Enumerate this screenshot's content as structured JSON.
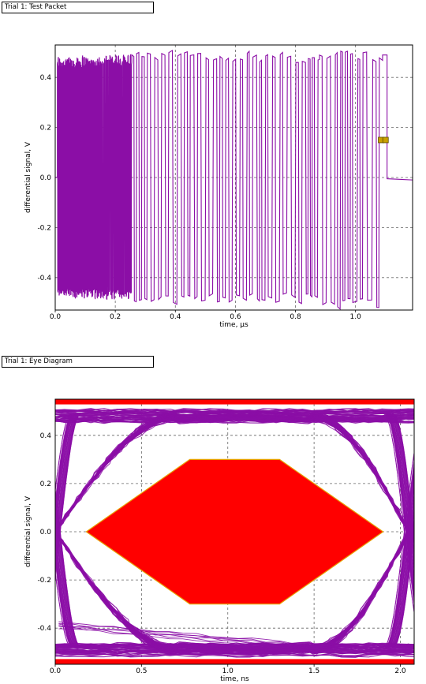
{
  "chart_data": [
    {
      "type": "line",
      "title": "Trial 1: Test Packet",
      "xlabel": "time, µs",
      "ylabel": "differential signal, V",
      "xlim": [
        0.0,
        1.19
      ],
      "ylim": [
        -0.53,
        0.53
      ],
      "xticks": [
        "0.0",
        "0.2",
        "0.4",
        "0.6",
        "0.8",
        "1.0"
      ],
      "xtick_values": [
        0.0,
        0.2,
        0.4,
        0.6,
        0.8,
        1.0
      ],
      "yticks": [
        "0.4",
        "0.2",
        "0.0",
        "-0.2",
        "-0.4"
      ],
      "ytick_values": [
        0.4,
        0.2,
        0.0,
        -0.2,
        -0.4
      ],
      "grid": true,
      "series": [
        {
          "color": "#8b0ea6",
          "segments": [
            {
              "x0": 0.0,
              "x1": 0.007,
              "type": "idle",
              "level": 0.0
            },
            {
              "x0": 0.007,
              "x1": 0.155,
              "type": "burst",
              "period": 0.0011,
              "high": 0.46,
              "low": -0.46
            },
            {
              "x0": 0.155,
              "x1": 0.255,
              "type": "burst",
              "period": 0.002,
              "high": 0.47,
              "low": -0.47
            },
            {
              "x0": 0.255,
              "x1": 0.88,
              "type": "burst",
              "period": 0.0105,
              "high": 0.48,
              "low": -0.48
            },
            {
              "x0": 0.88,
              "x1": 1.09,
              "type": "burst",
              "period": 0.013,
              "high": 0.49,
              "low": -0.5
            },
            {
              "x0": 1.09,
              "x1": 1.105,
              "type": "hold",
              "level": 0.49
            },
            {
              "x0": 1.105,
              "x1": 1.19,
              "type": "idle",
              "level": -0.005
            }
          ]
        }
      ],
      "markers": [
        {
          "x": 1.085,
          "y": 0.15,
          "color": "#c8a000"
        },
        {
          "x": 1.1,
          "y": 0.15,
          "color": "#c8a000"
        }
      ]
    },
    {
      "type": "line",
      "title": "Trial 1: Eye Diagram",
      "xlabel": "time, ns",
      "ylabel": "differential signal, V",
      "xlim": [
        0.0,
        2.08
      ],
      "ylim": [
        -0.55,
        0.55
      ],
      "xticks": [
        "0.0",
        "0.5",
        "1.0",
        "1.5",
        "2.0"
      ],
      "xtick_values": [
        0.0,
        0.5,
        1.0,
        1.5,
        2.0
      ],
      "yticks": [
        "0.4",
        "0.2",
        "0.0",
        "-0.2",
        "-0.4"
      ],
      "ytick_values": [
        0.4,
        0.2,
        0.0,
        -0.2,
        -0.4
      ],
      "grid": true,
      "eye_color": "#8b0ea6",
      "mask_color": "#ff0000",
      "mask_polygon": [
        [
          0.18,
          0.0
        ],
        [
          0.78,
          0.3
        ],
        [
          1.3,
          0.3
        ],
        [
          1.9,
          0.0
        ],
        [
          1.3,
          -0.3
        ],
        [
          0.78,
          -0.3
        ]
      ],
      "mask_limits": [
        0.535,
        -0.535
      ],
      "crossings": [
        0.0,
        2.05
      ],
      "levels": [
        0.48,
        -0.49
      ]
    }
  ]
}
